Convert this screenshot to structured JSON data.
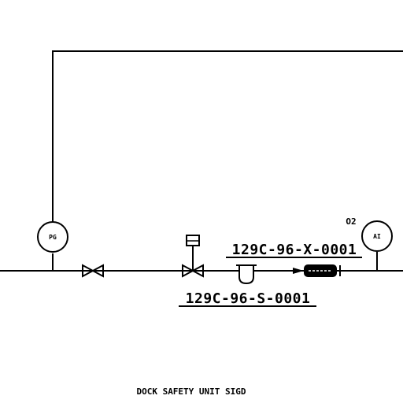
{
  "diagram": {
    "instruments": [
      {
        "id": "pg",
        "code": "PG"
      },
      {
        "id": "ai",
        "code": "AI",
        "annotation": "O2"
      }
    ],
    "line_tags": {
      "upper": "129C-96-X-0001",
      "lower": "129C-96-S-0001"
    },
    "caption": "DOCK SAFETY UNIT SIGD"
  },
  "colors": {
    "line": "#000000",
    "background": "#ffffff"
  }
}
